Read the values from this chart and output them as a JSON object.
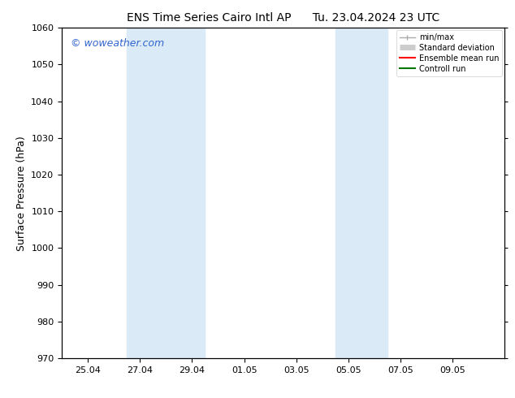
{
  "title_left": "ENS Time Series Cairo Intl AP",
  "title_right": "Tu. 23.04.2024 23 UTC",
  "ylabel": "Surface Pressure (hPa)",
  "ylim": [
    970,
    1060
  ],
  "yticks": [
    970,
    980,
    990,
    1000,
    1010,
    1020,
    1030,
    1040,
    1050,
    1060
  ],
  "xlim": [
    0.0,
    17.0
  ],
  "xtick_labels": [
    "25.04",
    "27.04",
    "29.04",
    "01.05",
    "03.05",
    "05.05",
    "07.05",
    "09.05"
  ],
  "xtick_positions": [
    1.0,
    3.0,
    5.0,
    7.0,
    9.0,
    11.0,
    13.0,
    15.0
  ],
  "shaded_bands": [
    {
      "x_start": 2.5,
      "x_end": 5.5
    },
    {
      "x_start": 10.5,
      "x_end": 12.5
    }
  ],
  "shaded_color": "#daeaf7",
  "background_color": "#ffffff",
  "watermark_text": "© woweather.com",
  "watermark_color": "#3366cc",
  "legend_entries": [
    {
      "label": "min/max",
      "color": "#aaaaaa",
      "lw": 1.0
    },
    {
      "label": "Standard deviation",
      "color": "#cccccc",
      "lw": 5
    },
    {
      "label": "Ensemble mean run",
      "color": "#ff0000",
      "lw": 1.5
    },
    {
      "label": "Controll run",
      "color": "#007700",
      "lw": 1.5
    }
  ],
  "title_fontsize": 10,
  "tick_fontsize": 8,
  "label_fontsize": 9,
  "watermark_fontsize": 9
}
